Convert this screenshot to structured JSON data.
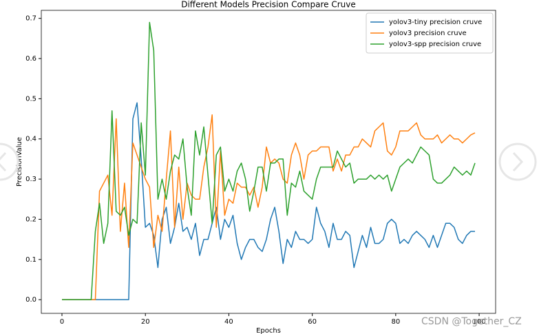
{
  "chart_data": {
    "type": "line",
    "title": "Different Models Precision Compare Cruve",
    "xlabel": "Epochs",
    "ylabel": "PrecisionValue",
    "x": [
      0,
      1,
      2,
      3,
      4,
      5,
      6,
      7,
      8,
      9,
      10,
      11,
      12,
      13,
      14,
      15,
      16,
      17,
      18,
      19,
      20,
      21,
      22,
      23,
      24,
      25,
      26,
      27,
      28,
      29,
      30,
      31,
      32,
      33,
      34,
      35,
      36,
      37,
      38,
      39,
      40,
      41,
      42,
      43,
      44,
      45,
      46,
      47,
      48,
      49,
      50,
      51,
      52,
      53,
      54,
      55,
      56,
      57,
      58,
      59,
      60,
      61,
      62,
      63,
      64,
      65,
      66,
      67,
      68,
      69,
      70,
      71,
      72,
      73,
      74,
      75,
      76,
      77,
      78,
      79,
      80,
      81,
      82,
      83,
      84,
      85,
      86,
      87,
      88,
      89,
      90,
      91,
      92,
      93,
      94,
      95,
      96,
      97,
      98,
      99
    ],
    "series": [
      {
        "name": "yolov3-tiny precision cruve",
        "color": "#1f77b4",
        "values": [
          0,
          0,
          0,
          0,
          0,
          0,
          0,
          0,
          0,
          0,
          0,
          0,
          0,
          0,
          0,
          0,
          0,
          0.45,
          0.49,
          0.35,
          0.18,
          0.19,
          0.16,
          0.08,
          0.2,
          0.23,
          0.14,
          0.18,
          0.24,
          0.17,
          0.18,
          0.15,
          0.19,
          0.11,
          0.15,
          0.15,
          0.19,
          0.23,
          0.15,
          0.2,
          0.18,
          0.21,
          0.14,
          0.1,
          0.13,
          0.15,
          0.15,
          0.13,
          0.12,
          0.15,
          0.2,
          0.23,
          0.17,
          0.09,
          0.15,
          0.13,
          0.17,
          0.15,
          0.15,
          0.14,
          0.15,
          0.23,
          0.19,
          0.17,
          0.13,
          0.19,
          0.15,
          0.15,
          0.17,
          0.16,
          0.08,
          0.12,
          0.16,
          0.13,
          0.18,
          0.14,
          0.14,
          0.15,
          0.19,
          0.2,
          0.19,
          0.14,
          0.15,
          0.14,
          0.16,
          0.17,
          0.16,
          0.15,
          0.13,
          0.16,
          0.13,
          0.16,
          0.19,
          0.19,
          0.18,
          0.15,
          0.14,
          0.16,
          0.17,
          0.17
        ]
      },
      {
        "name": "yolov3 precision cruve",
        "color": "#ff7f0e",
        "values": [
          0,
          0,
          0,
          0,
          0,
          0,
          0,
          0,
          0,
          0.27,
          0.29,
          0.31,
          0.21,
          0.45,
          0.17,
          0.29,
          0.13,
          0.39,
          0.36,
          0.33,
          0.3,
          0.28,
          0.13,
          0.21,
          0.17,
          0.3,
          0.42,
          0.18,
          0.33,
          0.2,
          0.29,
          0.26,
          0.25,
          0.25,
          0.33,
          0.38,
          0.46,
          0.18,
          0.37,
          0.21,
          0.25,
          0.24,
          0.29,
          0.28,
          0.28,
          0.26,
          0.28,
          0.23,
          0.28,
          0.38,
          0.34,
          0.35,
          0.34,
          0.3,
          0.29,
          0.36,
          0.39,
          0.36,
          0.3,
          0.36,
          0.37,
          0.37,
          0.38,
          0.38,
          0.38,
          0.32,
          0.35,
          0.32,
          0.36,
          0.36,
          0.38,
          0.38,
          0.4,
          0.39,
          0.38,
          0.42,
          0.43,
          0.44,
          0.37,
          0.36,
          0.38,
          0.42,
          0.42,
          0.42,
          0.43,
          0.44,
          0.41,
          0.4,
          0.4,
          0.4,
          0.41,
          0.39,
          0.4,
          0.41,
          0.4,
          0.4,
          0.39,
          0.4,
          0.41,
          0.415
        ]
      },
      {
        "name": "yolov3-spp precision cruve",
        "color": "#2ca02c",
        "values": [
          0,
          0,
          0,
          0,
          0,
          0,
          0,
          0,
          0.17,
          0.24,
          0.14,
          0.19,
          0.47,
          0.22,
          0.21,
          0.23,
          0.16,
          0.2,
          0.19,
          0.44,
          0.31,
          0.69,
          0.62,
          0.25,
          0.3,
          0.25,
          0.32,
          0.36,
          0.35,
          0.4,
          0.28,
          0.21,
          0.42,
          0.36,
          0.43,
          0.31,
          0.19,
          0.36,
          0.38,
          0.27,
          0.3,
          0.27,
          0.32,
          0.34,
          0.3,
          0.22,
          0.27,
          0.33,
          0.33,
          0.27,
          0.34,
          0.34,
          0.35,
          0.35,
          0.21,
          0.29,
          0.28,
          0.32,
          0.27,
          0.26,
          0.25,
          0.3,
          0.33,
          0.33,
          0.33,
          0.33,
          0.37,
          0.35,
          0.33,
          0.34,
          0.29,
          0.3,
          0.3,
          0.3,
          0.31,
          0.3,
          0.31,
          0.3,
          0.31,
          0.27,
          0.3,
          0.33,
          0.34,
          0.35,
          0.34,
          0.36,
          0.38,
          0.37,
          0.36,
          0.3,
          0.29,
          0.29,
          0.3,
          0.31,
          0.33,
          0.32,
          0.31,
          0.32,
          0.31,
          0.34
        ]
      }
    ],
    "xlim": [
      -4.95,
      103.95
    ],
    "xticks": [
      0,
      20,
      40,
      60,
      80,
      100
    ],
    "ylim": [
      -0.034,
      0.72
    ],
    "yticks": [
      {
        "value": 0,
        "label": "0.0"
      },
      0.1,
      0.2,
      0.3,
      0.4,
      0.5,
      0.6,
      0.7
    ],
    "legend": "upper right",
    "watermark": "CSDN @Together_CZ"
  }
}
